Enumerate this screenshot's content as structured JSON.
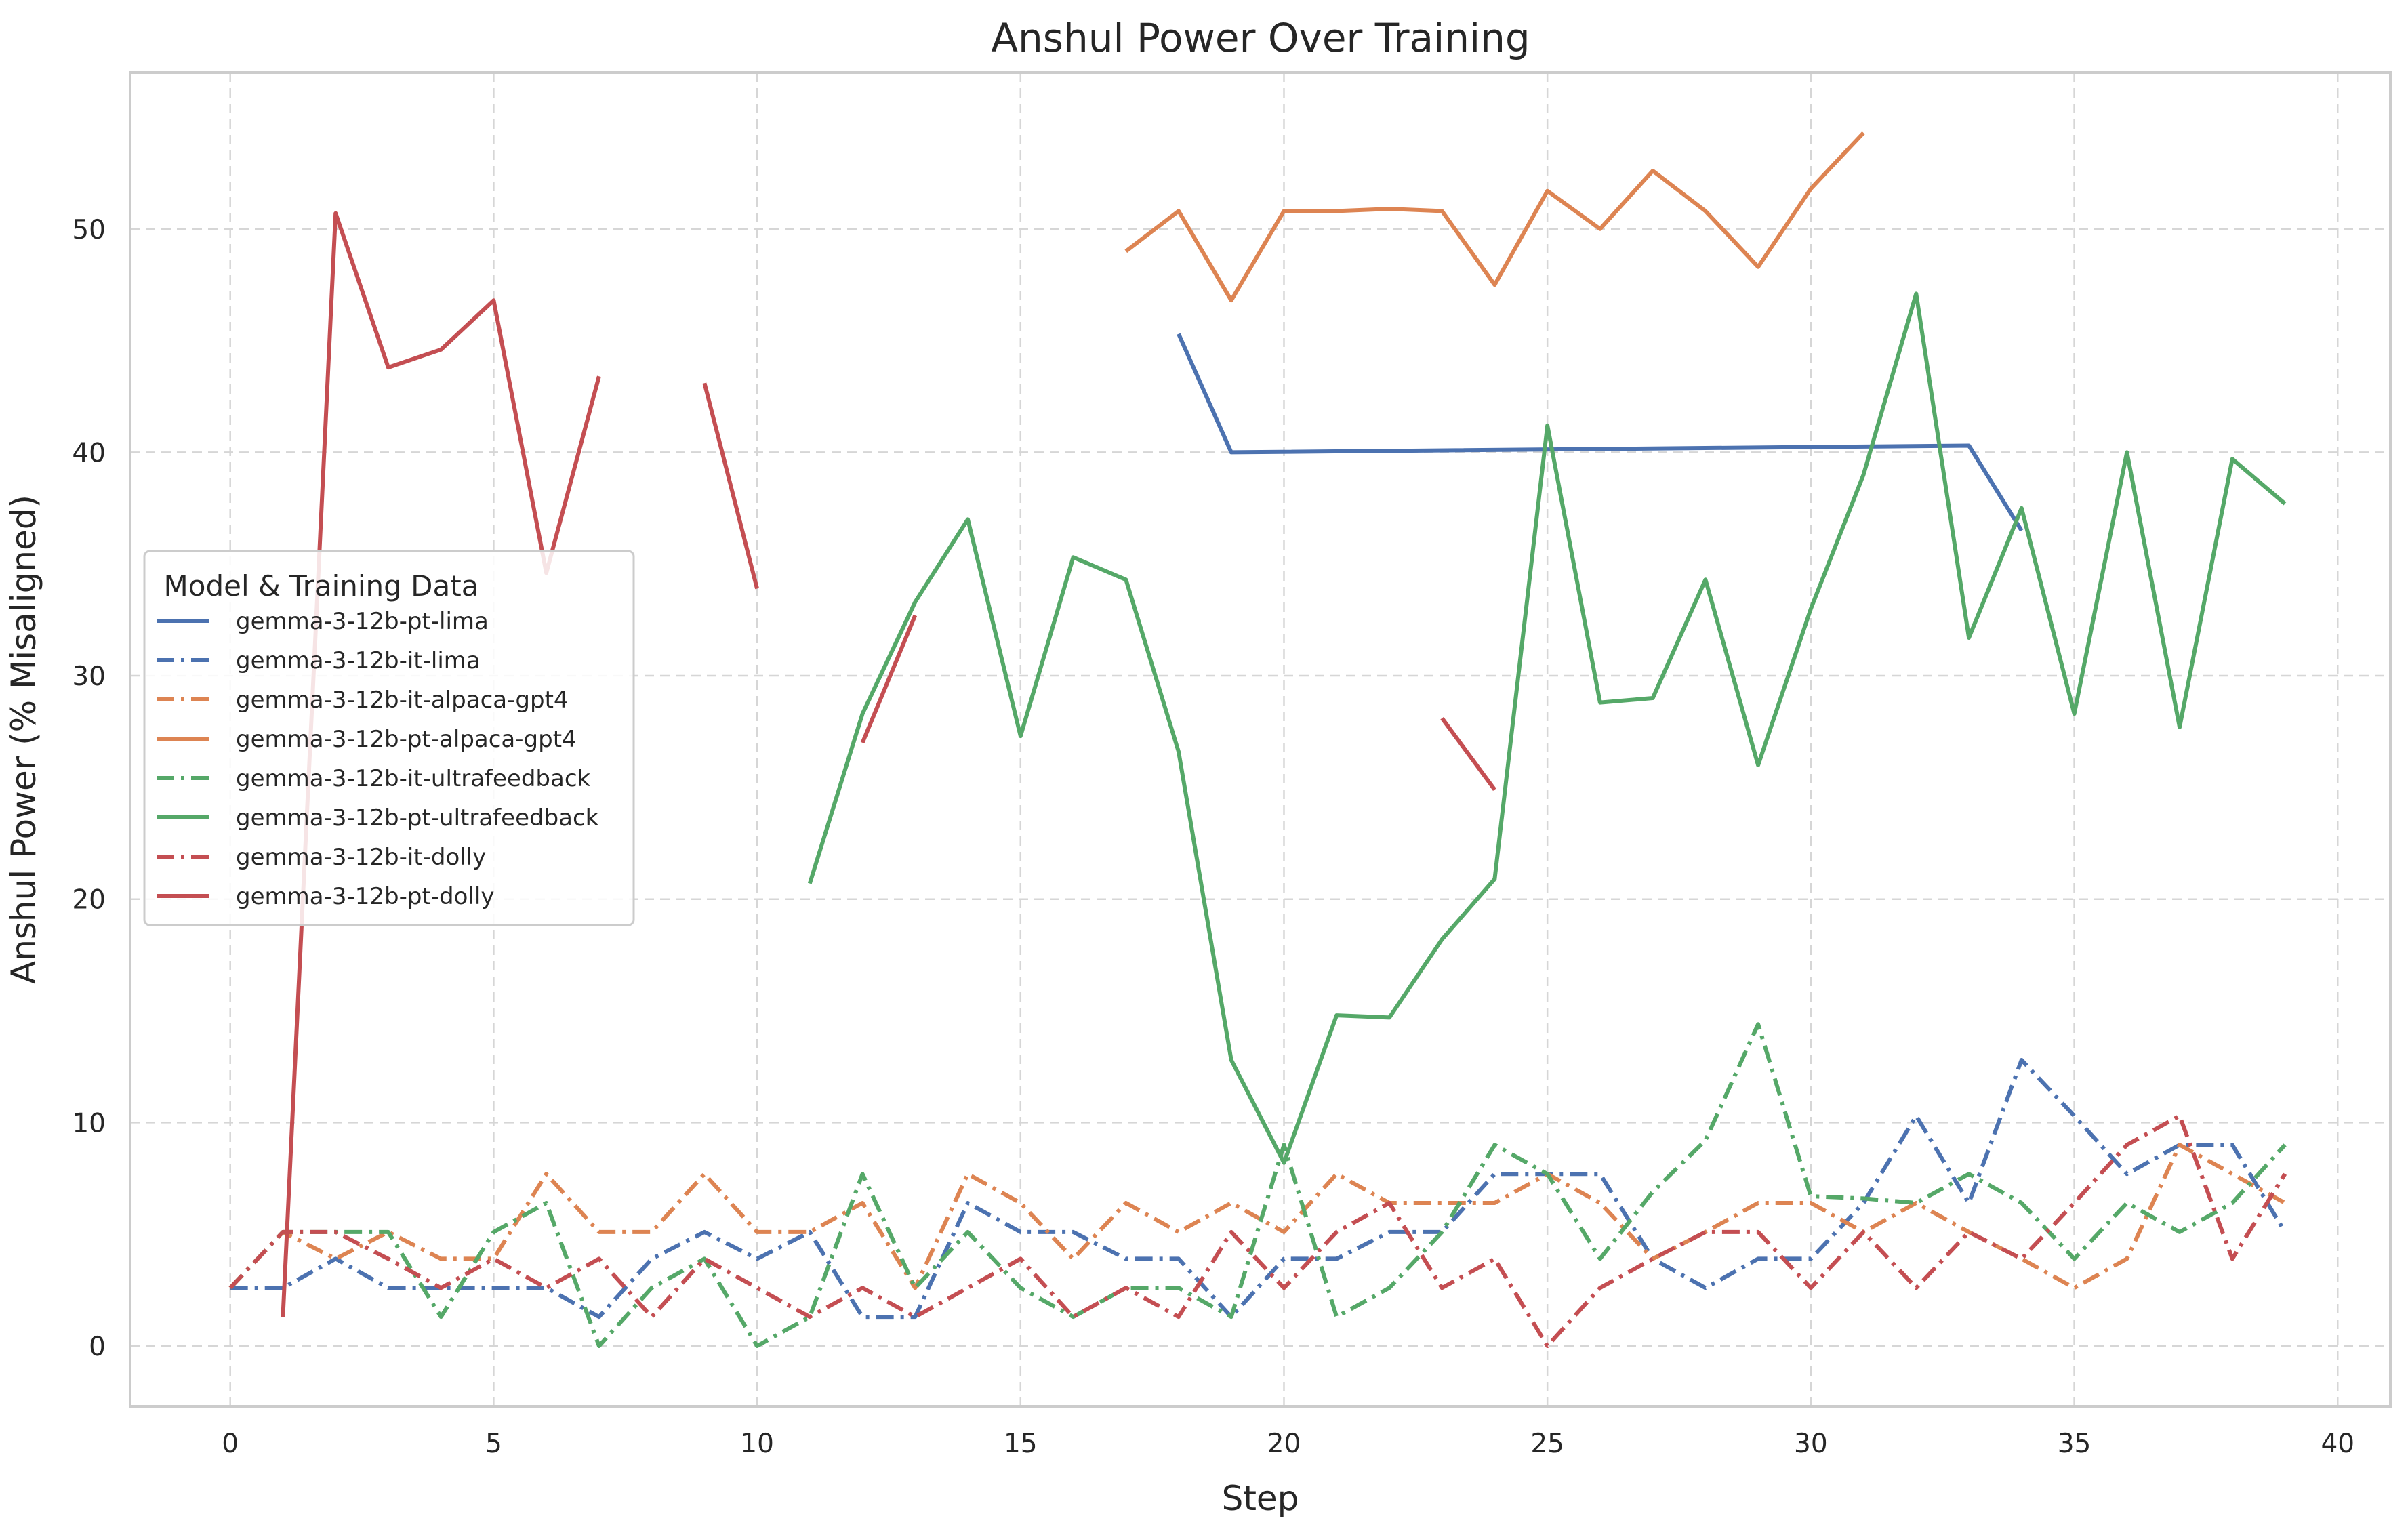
{
  "chart_data": {
    "type": "line",
    "title": "Anshul Power Over Training",
    "xlabel": "Step",
    "ylabel": "Anshul Power (% Misaligned)",
    "xlim": [
      -1.9,
      41.0
    ],
    "ylim": [
      -2.7,
      57.0
    ],
    "xticks": [
      0,
      5,
      10,
      15,
      20,
      25,
      30,
      35,
      40
    ],
    "yticks": [
      0,
      10,
      20,
      30,
      40,
      50
    ],
    "grid": true,
    "legend": {
      "title": "Model & Training Data",
      "placement": "center-left"
    },
    "series": [
      {
        "name": "gemma-3-12b-pt-lima",
        "color": "#4c72b0",
        "style": "solid",
        "points": [
          [
            18,
            45.3
          ],
          [
            19,
            40.0
          ],
          [
            33,
            40.3
          ],
          [
            34,
            36.5
          ]
        ]
      },
      {
        "name": "gemma-3-12b-it-lima",
        "color": "#4c72b0",
        "style": "dashdot",
        "points": [
          [
            0,
            2.6
          ],
          [
            1,
            2.6
          ],
          [
            2,
            3.9
          ],
          [
            3,
            2.6
          ],
          [
            4,
            2.6
          ],
          [
            5,
            2.6
          ],
          [
            6,
            2.6
          ],
          [
            7,
            1.3
          ],
          [
            8,
            3.9
          ],
          [
            9,
            5.1
          ],
          [
            10,
            3.9
          ],
          [
            11,
            5.1
          ],
          [
            12,
            1.3
          ],
          [
            13,
            1.3
          ],
          [
            14,
            6.4
          ],
          [
            15,
            5.1
          ],
          [
            16,
            5.1
          ],
          [
            17,
            3.9
          ],
          [
            18,
            3.9
          ],
          [
            19,
            1.3
          ],
          [
            20,
            3.9
          ],
          [
            21,
            3.9
          ],
          [
            22,
            5.1
          ],
          [
            23,
            5.1
          ],
          [
            24,
            7.7
          ],
          [
            25,
            7.7
          ],
          [
            26,
            7.7
          ],
          [
            27,
            3.9
          ],
          [
            28,
            2.6
          ],
          [
            29,
            3.9
          ],
          [
            30,
            3.9
          ],
          [
            31,
            6.4
          ],
          [
            32,
            10.3
          ],
          [
            33,
            6.4
          ],
          [
            34,
            12.8
          ],
          [
            35,
            10.3
          ],
          [
            36,
            7.7
          ],
          [
            37,
            9.0
          ],
          [
            38,
            9.0
          ],
          [
            39,
            5.1
          ]
        ]
      },
      {
        "name": "gemma-3-12b-it-alpaca-gpt4",
        "color": "#dd8452",
        "style": "dashdot",
        "points": [
          [
            0,
            2.6
          ],
          [
            1,
            5.1
          ],
          [
            2,
            3.9
          ],
          [
            3,
            5.1
          ],
          [
            4,
            3.9
          ],
          [
            5,
            3.9
          ],
          [
            6,
            7.7
          ],
          [
            7,
            5.1
          ],
          [
            8,
            5.1
          ],
          [
            9,
            7.7
          ],
          [
            10,
            5.1
          ],
          [
            11,
            5.1
          ],
          [
            12,
            6.4
          ],
          [
            13,
            2.6
          ],
          [
            14,
            7.7
          ],
          [
            15,
            6.4
          ],
          [
            16,
            3.9
          ],
          [
            17,
            6.4
          ],
          [
            18,
            5.1
          ],
          [
            19,
            6.4
          ],
          [
            20,
            5.1
          ],
          [
            21,
            7.7
          ],
          [
            22,
            6.4
          ],
          [
            23,
            6.4
          ],
          [
            24,
            6.4
          ],
          [
            25,
            7.7
          ],
          [
            26,
            6.4
          ],
          [
            27,
            3.9
          ],
          [
            28,
            5.1
          ],
          [
            29,
            6.4
          ],
          [
            30,
            6.4
          ],
          [
            31,
            5.1
          ],
          [
            32,
            6.4
          ],
          [
            33,
            5.1
          ],
          [
            34,
            3.9
          ],
          [
            35,
            2.6
          ],
          [
            36,
            3.9
          ],
          [
            37,
            9.0
          ],
          [
            38,
            7.7
          ],
          [
            39,
            6.4
          ]
        ]
      },
      {
        "name": "gemma-3-12b-pt-alpaca-gpt4",
        "color": "#dd8452",
        "style": "solid",
        "points": [
          [
            17,
            49.0
          ],
          [
            18,
            50.8
          ],
          [
            19,
            46.8
          ],
          [
            20,
            50.8
          ],
          [
            21,
            50.8
          ],
          [
            22,
            50.9
          ],
          [
            23,
            50.8
          ],
          [
            24,
            47.5
          ],
          [
            25,
            51.7
          ],
          [
            26,
            50.0
          ],
          [
            27,
            52.6
          ],
          [
            28,
            50.8
          ],
          [
            29,
            48.3
          ],
          [
            30,
            51.8
          ],
          [
            31,
            54.3
          ]
        ]
      },
      {
        "name": "gemma-3-12b-it-ultrafeedback",
        "color": "#55a868",
        "style": "dashdot",
        "points": [
          [
            0,
            2.6
          ],
          [
            1,
            5.1
          ],
          [
            2,
            5.1
          ],
          [
            3,
            5.1
          ],
          [
            4,
            1.3
          ],
          [
            5,
            5.1
          ],
          [
            6,
            6.4
          ],
          [
            7,
            0.0
          ],
          [
            8,
            2.6
          ],
          [
            9,
            3.9
          ],
          [
            10,
            0.0
          ],
          [
            11,
            1.3
          ],
          [
            12,
            7.7
          ],
          [
            13,
            2.6
          ],
          [
            14,
            5.1
          ],
          [
            15,
            2.6
          ],
          [
            16,
            1.3
          ],
          [
            17,
            2.6
          ],
          [
            18,
            2.6
          ],
          [
            19,
            1.3
          ],
          [
            20,
            9.0
          ],
          [
            21,
            1.3
          ],
          [
            22,
            2.6
          ],
          [
            23,
            5.1
          ],
          [
            24,
            9.0
          ],
          [
            25,
            7.7
          ],
          [
            26,
            3.9
          ],
          [
            27,
            6.9
          ],
          [
            28,
            9.2
          ],
          [
            29,
            14.4
          ],
          [
            30,
            6.7
          ],
          [
            31,
            6.6
          ],
          [
            32,
            6.4
          ],
          [
            33,
            7.7
          ],
          [
            34,
            6.4
          ],
          [
            35,
            3.9
          ],
          [
            36,
            6.4
          ],
          [
            37,
            5.1
          ],
          [
            38,
            6.4
          ],
          [
            39,
            9.0
          ]
        ]
      },
      {
        "name": "gemma-3-12b-pt-ultrafeedback",
        "color": "#55a868",
        "style": "solid",
        "points": [
          [
            11,
            20.7
          ],
          [
            12,
            28.3
          ],
          [
            13,
            33.3
          ],
          [
            14,
            37.0
          ],
          [
            15,
            27.3
          ],
          [
            16,
            35.3
          ],
          [
            17,
            34.3
          ],
          [
            18,
            26.6
          ],
          [
            19,
            12.8
          ],
          [
            20,
            8.2
          ],
          [
            21,
            14.8
          ],
          [
            22,
            14.7
          ],
          [
            23,
            18.2
          ],
          [
            24,
            20.9
          ],
          [
            25,
            41.2
          ],
          [
            26,
            28.8
          ],
          [
            27,
            29.0
          ],
          [
            28,
            34.3
          ],
          [
            29,
            26.0
          ],
          [
            30,
            33.0
          ],
          [
            31,
            39.0
          ],
          [
            32,
            47.1
          ],
          [
            33,
            31.7
          ],
          [
            34,
            37.5
          ],
          [
            35,
            28.3
          ],
          [
            36,
            40.0
          ],
          [
            37,
            27.7
          ],
          [
            38,
            39.7
          ],
          [
            39,
            37.7
          ]
        ]
      },
      {
        "name": "gemma-3-12b-it-dolly",
        "color": "#c44e52",
        "style": "dashdot",
        "points": [
          [
            0,
            2.6
          ],
          [
            1,
            5.1
          ],
          [
            2,
            5.1
          ],
          [
            3,
            3.9
          ],
          [
            4,
            2.6
          ],
          [
            5,
            3.9
          ],
          [
            6,
            2.6
          ],
          [
            7,
            3.9
          ],
          [
            8,
            1.3
          ],
          [
            9,
            3.9
          ],
          [
            10,
            2.6
          ],
          [
            11,
            1.3
          ],
          [
            12,
            2.6
          ],
          [
            13,
            1.3
          ],
          [
            14,
            2.6
          ],
          [
            15,
            3.9
          ],
          [
            16,
            1.3
          ],
          [
            17,
            2.6
          ],
          [
            18,
            1.3
          ],
          [
            19,
            5.1
          ],
          [
            20,
            2.6
          ],
          [
            21,
            5.1
          ],
          [
            22,
            6.4
          ],
          [
            23,
            2.6
          ],
          [
            24,
            3.9
          ],
          [
            25,
            0.0
          ],
          [
            26,
            2.6
          ],
          [
            27,
            3.9
          ],
          [
            28,
            5.1
          ],
          [
            29,
            5.1
          ],
          [
            30,
            2.6
          ],
          [
            31,
            5.1
          ],
          [
            32,
            2.6
          ],
          [
            33,
            5.1
          ],
          [
            34,
            3.9
          ],
          [
            35,
            6.4
          ],
          [
            36,
            9.0
          ],
          [
            37,
            10.3
          ],
          [
            38,
            3.9
          ],
          [
            39,
            7.7
          ]
        ]
      },
      {
        "name": "gemma-3-12b-pt-dolly",
        "color": "#c44e52",
        "style": "solid",
        "segments": [
          [
            [
              1,
              1.3
            ],
            [
              2,
              50.7
            ],
            [
              3,
              43.8
            ],
            [
              4,
              44.6
            ],
            [
              5,
              46.8
            ],
            [
              6,
              34.6
            ],
            [
              7,
              43.4
            ]
          ],
          [
            [
              9,
              43.1
            ],
            [
              10,
              33.9
            ]
          ],
          [
            [
              12,
              27.0
            ],
            [
              13,
              32.7
            ]
          ],
          [
            [
              23,
              28.1
            ],
            [
              24,
              24.9
            ]
          ]
        ]
      }
    ]
  }
}
